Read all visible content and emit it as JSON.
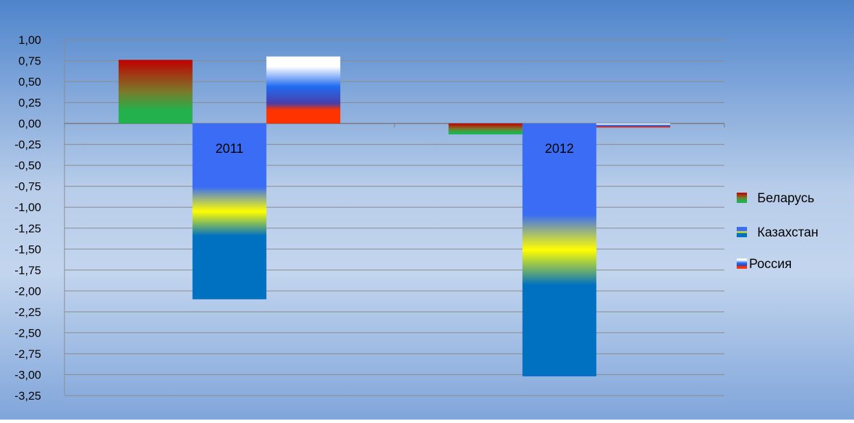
{
  "chart_data": {
    "type": "bar",
    "categories": [
      "2011",
      "2012"
    ],
    "series": [
      {
        "name": "Беларусь",
        "values": [
          0.76,
          -0.13
        ]
      },
      {
        "name": "Казахстан",
        "values": [
          -2.1,
          -3.02
        ]
      },
      {
        "name": "Россия",
        "values": [
          0.8,
          -0.05
        ]
      }
    ],
    "ylim": [
      -3.25,
      1.0
    ],
    "ytick_step": 0.25,
    "ytick_labels": [
      "1,00",
      "0,75",
      "0,50",
      "0,25",
      "0,00",
      "-0,25",
      "-0,50",
      "-0,75",
      "-1,00",
      "-1,25",
      "-1,50",
      "-1,75",
      "-2,00",
      "-2,25",
      "-2,50",
      "-2,75",
      "-3,00",
      "-3,25"
    ],
    "grid": true,
    "legend_position": "right",
    "colors": {
      "background_top": "#4f86cc",
      "background_mid": "#c3d5ee",
      "belarus": [
        "#c00000",
        "#22b14c"
      ],
      "kazakhstan": [
        "#3a6cf5",
        "#ffff00",
        "#0070c0"
      ],
      "russia": [
        "#ffffff",
        "#1f6cf0",
        "#ff3300"
      ]
    }
  }
}
